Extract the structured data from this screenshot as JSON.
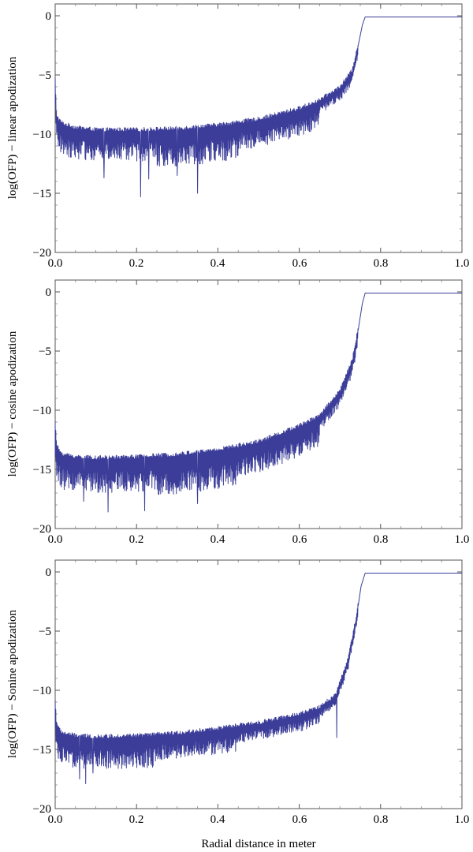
{
  "x_axis_label": "Radial distance in meter",
  "chart_data": [
    {
      "type": "line",
      "ylabel": "log(OFP) − linear apodization",
      "xlim": [
        0.0,
        1.0
      ],
      "ylim": [
        -20,
        1
      ],
      "x_ticks": [
        0.0,
        0.2,
        0.4,
        0.6,
        0.8,
        1.0
      ],
      "x_tick_labels": [
        "0.0",
        "0.2",
        "0.4",
        "0.6",
        "0.8",
        "1.0"
      ],
      "y_ticks": [
        0,
        -5,
        -10,
        -15,
        -20
      ],
      "y_tick_labels": [
        "0",
        "−5",
        "−10",
        "−15",
        "−20"
      ],
      "series": [
        {
          "name": "linear apodization",
          "color": "#3b3d99",
          "envelope": {
            "x": [
              0.0,
              0.003,
              0.01,
              0.02,
              0.05,
              0.1,
              0.2,
              0.3,
              0.4,
              0.5,
              0.6,
              0.65,
              0.7,
              0.73,
              0.745,
              0.755,
              0.762,
              0.765,
              1.0
            ],
            "y": [
              -5.5,
              -8.5,
              -9.0,
              -9.3,
              -9.6,
              -9.8,
              -9.8,
              -9.7,
              -9.4,
              -8.9,
              -8.0,
              -7.3,
              -6.2,
              -4.8,
              -2.5,
              -0.8,
              -0.1,
              -0.1,
              -0.1
            ]
          },
          "oscillation_depth": [
            2.5,
            3.0,
            2.2,
            1.0
          ],
          "dips": [
            [
              0.21,
              -15.3
            ],
            [
              0.35,
              -15.0
            ],
            [
              0.3,
              -13.5
            ],
            [
              0.12,
              -13.7
            ],
            [
              0.23,
              -13.8
            ]
          ]
        }
      ]
    },
    {
      "type": "line",
      "ylabel": "log(OFP) − cosine apodization",
      "xlim": [
        0.0,
        1.0
      ],
      "ylim": [
        -20,
        1
      ],
      "x_ticks": [
        0.0,
        0.2,
        0.4,
        0.6,
        0.8,
        1.0
      ],
      "x_tick_labels": [
        "0.0",
        "0.2",
        "0.4",
        "0.6",
        "0.8",
        "1.0"
      ],
      "y_ticks": [
        0,
        -5,
        -10,
        -15,
        -20
      ],
      "y_tick_labels": [
        "0",
        "−5",
        "−10",
        "−15",
        "−20"
      ],
      "series": [
        {
          "name": "cosine apodization",
          "color": "#3b3d99",
          "envelope": {
            "x": [
              0.0,
              0.003,
              0.01,
              0.02,
              0.05,
              0.1,
              0.2,
              0.3,
              0.4,
              0.5,
              0.6,
              0.65,
              0.7,
              0.73,
              0.745,
              0.755,
              0.762,
              0.765,
              1.0
            ],
            "y": [
              -11.0,
              -13.0,
              -13.6,
              -13.9,
              -14.1,
              -14.2,
              -14.1,
              -13.9,
              -13.5,
              -12.8,
              -11.5,
              -10.6,
              -8.5,
              -6.0,
              -3.2,
              -1.0,
              -0.1,
              -0.1,
              -0.1
            ]
          },
          "oscillation_depth": [
            2.8,
            3.2,
            2.5,
            1.2
          ],
          "dips": [
            [
              0.13,
              -18.6
            ],
            [
              0.22,
              -18.5
            ],
            [
              0.07,
              -17.7
            ],
            [
              0.35,
              -17.9
            ]
          ]
        }
      ]
    },
    {
      "type": "line",
      "ylabel": "log(OFP) − Sonine apodization",
      "xlim": [
        0.0,
        1.0
      ],
      "ylim": [
        -20,
        1
      ],
      "x_ticks": [
        0.0,
        0.2,
        0.4,
        0.6,
        0.8,
        1.0
      ],
      "x_tick_labels": [
        "0.0",
        "0.2",
        "0.4",
        "0.6",
        "0.8",
        "1.0"
      ],
      "y_ticks": [
        0,
        -5,
        -10,
        -15,
        -20
      ],
      "y_tick_labels": [
        "0",
        "−5",
        "−10",
        "−15",
        "−20"
      ],
      "series": [
        {
          "name": "Sonine apodization",
          "color": "#3b3d99",
          "envelope": {
            "x": [
              0.0,
              0.003,
              0.01,
              0.02,
              0.05,
              0.1,
              0.2,
              0.3,
              0.4,
              0.5,
              0.6,
              0.65,
              0.69,
              0.72,
              0.74,
              0.752,
              0.762,
              0.765,
              1.0
            ],
            "y": [
              -11.0,
              -12.8,
              -13.5,
              -13.8,
              -14.0,
              -14.1,
              -14.0,
              -13.8,
              -13.4,
              -12.9,
              -12.2,
              -11.6,
              -10.5,
              -7.5,
              -4.0,
              -1.2,
              -0.1,
              -0.1,
              -0.1
            ]
          },
          "oscillation_depth": [
            2.6,
            2.0,
            1.3,
            0.8
          ],
          "dips": [
            [
              0.075,
              -17.9
            ],
            [
              0.06,
              -17.5
            ],
            [
              0.093,
              -17.0
            ],
            [
              0.692,
              -14.0
            ]
          ]
        }
      ]
    }
  ]
}
